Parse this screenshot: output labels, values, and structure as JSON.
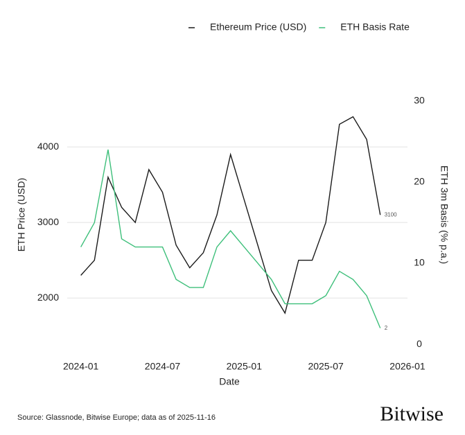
{
  "chart_data": {
    "type": "line",
    "x": [
      "2024-01",
      "2024-02",
      "2024-03",
      "2024-04",
      "2024-05",
      "2024-06",
      "2024-07",
      "2024-08",
      "2024-09",
      "2024-10",
      "2024-11",
      "2024-12",
      "2025-01",
      "2025-02",
      "2025-03",
      "2025-04",
      "2025-05",
      "2025-06",
      "2025-07",
      "2025-08",
      "2025-09",
      "2025-10",
      "2025-11"
    ],
    "xlim": [
      "2023-12",
      "2026-01"
    ],
    "xticks": [
      "2024-01",
      "2024-07",
      "2025-01",
      "2025-07",
      "2026-01"
    ],
    "xlabel": "Date",
    "ylabel": "ETH Price (USD)",
    "y2label": "ETH 3m Basis (% p.a.)",
    "ylim": [
      1360,
      4845
    ],
    "yticks": [
      2000,
      3000,
      4000
    ],
    "y2lim": [
      -0.25,
      32.2
    ],
    "y2ticks": [
      0,
      10,
      20,
      30
    ],
    "grid": true,
    "legend": "top",
    "series": [
      {
        "name": "Ethereum Price (USD)",
        "color": "#1a1a1a",
        "values": [
          2300,
          2500,
          3600,
          3200,
          3000,
          3700,
          3400,
          2700,
          2400,
          2600,
          3100,
          3900,
          3300,
          2700,
          2100,
          1800,
          2500,
          2500,
          3000,
          4300,
          4400,
          4100,
          3100
        ],
        "value_labels": [
          null,
          null,
          null,
          null,
          null,
          null,
          null,
          null,
          null,
          null,
          null,
          null,
          null,
          null,
          null,
          null,
          null,
          null,
          null,
          null,
          null,
          null,
          "3100"
        ]
      },
      {
        "name": "ETH Basis Rate",
        "color": "#3dbf7a",
        "axis": "y2",
        "values": [
          12,
          15,
          24,
          13,
          12,
          12,
          12,
          8,
          7,
          7,
          12,
          14,
          12,
          10,
          8,
          5,
          5,
          5,
          6,
          9,
          8,
          6,
          2
        ],
        "value_labels": [
          null,
          null,
          null,
          null,
          null,
          null,
          null,
          null,
          null,
          null,
          null,
          null,
          null,
          null,
          null,
          null,
          null,
          null,
          null,
          null,
          null,
          null,
          "2"
        ]
      }
    ],
    "source": "Source: Glassnode, Bitwise Europe; data as of 2025-11-16",
    "logo": "Bitwise"
  }
}
